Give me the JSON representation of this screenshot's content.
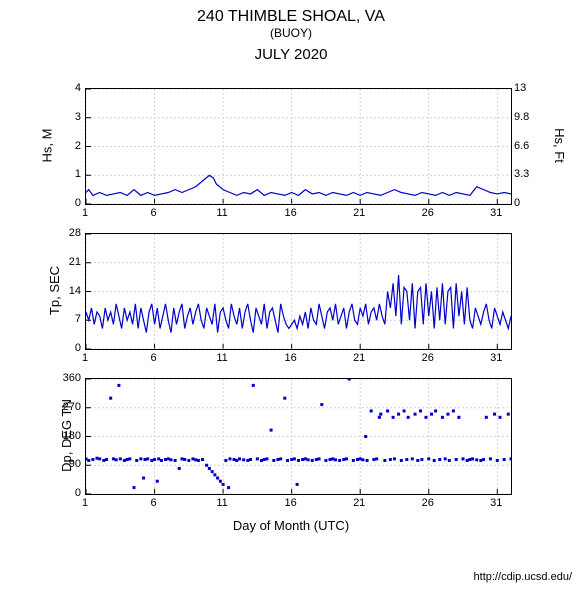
{
  "title": "240 THIMBLE SHOAL, VA",
  "subtitle": "(BUOY)",
  "month_title": "JULY 2020",
  "x_axis_label": "Day of Month (UTC)",
  "footer": "http://cdip.ucsd.edu/",
  "x_ticks": [
    1,
    6,
    11,
    16,
    21,
    26,
    31
  ],
  "x_range": [
    1,
    32
  ],
  "line_color": "#0000cc",
  "grid_color": "#d3d3d3",
  "background_color": "#ffffff",
  "text_color": "#000000",
  "chart1": {
    "y_label_left": "Hs, M",
    "y_label_right": "Hs, Ft",
    "y_ticks_left": [
      0,
      1,
      2,
      3,
      4
    ],
    "y_ticks_right": [
      0,
      3.3,
      6.6,
      9.8,
      13
    ],
    "y_range": [
      0,
      4
    ],
    "type": "line",
    "data": [
      [
        1,
        0.4
      ],
      [
        1.2,
        0.5
      ],
      [
        1.5,
        0.3
      ],
      [
        2,
        0.4
      ],
      [
        2.5,
        0.3
      ],
      [
        3,
        0.35
      ],
      [
        3.5,
        0.4
      ],
      [
        4,
        0.3
      ],
      [
        4.5,
        0.5
      ],
      [
        5,
        0.3
      ],
      [
        5.5,
        0.4
      ],
      [
        6,
        0.3
      ],
      [
        6.5,
        0.35
      ],
      [
        7,
        0.4
      ],
      [
        7.5,
        0.5
      ],
      [
        8,
        0.4
      ],
      [
        8.5,
        0.5
      ],
      [
        9,
        0.6
      ],
      [
        9.5,
        0.8
      ],
      [
        10,
        1.0
      ],
      [
        10.3,
        0.9
      ],
      [
        10.5,
        0.7
      ],
      [
        11,
        0.5
      ],
      [
        11.5,
        0.4
      ],
      [
        12,
        0.3
      ],
      [
        12.5,
        0.4
      ],
      [
        13,
        0.35
      ],
      [
        13.5,
        0.5
      ],
      [
        14,
        0.3
      ],
      [
        14.5,
        0.4
      ],
      [
        15,
        0.35
      ],
      [
        15.5,
        0.3
      ],
      [
        16,
        0.4
      ],
      [
        16.5,
        0.3
      ],
      [
        17,
        0.5
      ],
      [
        17.5,
        0.35
      ],
      [
        18,
        0.4
      ],
      [
        18.5,
        0.3
      ],
      [
        19,
        0.4
      ],
      [
        19.5,
        0.35
      ],
      [
        20,
        0.3
      ],
      [
        20.5,
        0.4
      ],
      [
        21,
        0.3
      ],
      [
        21.5,
        0.4
      ],
      [
        22,
        0.35
      ],
      [
        22.5,
        0.3
      ],
      [
        23,
        0.4
      ],
      [
        23.5,
        0.5
      ],
      [
        24,
        0.4
      ],
      [
        24.5,
        0.35
      ],
      [
        25,
        0.3
      ],
      [
        25.5,
        0.4
      ],
      [
        26,
        0.35
      ],
      [
        26.5,
        0.3
      ],
      [
        27,
        0.4
      ],
      [
        27.5,
        0.3
      ],
      [
        28,
        0.4
      ],
      [
        28.5,
        0.35
      ],
      [
        29,
        0.3
      ],
      [
        29.5,
        0.6
      ],
      [
        30,
        0.5
      ],
      [
        30.5,
        0.4
      ],
      [
        31,
        0.35
      ],
      [
        31.5,
        0.4
      ],
      [
        32,
        0.35
      ]
    ]
  },
  "chart2": {
    "y_label_left": "Tp, SEC",
    "y_ticks_left": [
      0,
      7,
      14,
      21,
      28
    ],
    "y_range": [
      0,
      28
    ],
    "type": "line",
    "data": [
      [
        1,
        9
      ],
      [
        1.2,
        7
      ],
      [
        1.4,
        10
      ],
      [
        1.6,
        6
      ],
      [
        1.8,
        9
      ],
      [
        2,
        8
      ],
      [
        2.2,
        5
      ],
      [
        2.4,
        10
      ],
      [
        2.6,
        7
      ],
      [
        2.8,
        9
      ],
      [
        3,
        6
      ],
      [
        3.2,
        11
      ],
      [
        3.4,
        8
      ],
      [
        3.6,
        5
      ],
      [
        3.8,
        10
      ],
      [
        4,
        7
      ],
      [
        4.2,
        9
      ],
      [
        4.4,
        6
      ],
      [
        4.6,
        11
      ],
      [
        4.8,
        5
      ],
      [
        5,
        10
      ],
      [
        5.2,
        7
      ],
      [
        5.4,
        4
      ],
      [
        5.6,
        9
      ],
      [
        5.8,
        11
      ],
      [
        6,
        6
      ],
      [
        6.2,
        10
      ],
      [
        6.4,
        5
      ],
      [
        6.6,
        8
      ],
      [
        6.8,
        11
      ],
      [
        7,
        7
      ],
      [
        7.2,
        4
      ],
      [
        7.4,
        10
      ],
      [
        7.6,
        6
      ],
      [
        7.8,
        9
      ],
      [
        8,
        11
      ],
      [
        8.2,
        5
      ],
      [
        8.4,
        8
      ],
      [
        8.6,
        10
      ],
      [
        8.8,
        6
      ],
      [
        9,
        9
      ],
      [
        9.2,
        11
      ],
      [
        9.4,
        7
      ],
      [
        9.6,
        5
      ],
      [
        9.8,
        10
      ],
      [
        10,
        8
      ],
      [
        10.2,
        6
      ],
      [
        10.4,
        11
      ],
      [
        10.6,
        4
      ],
      [
        10.8,
        9
      ],
      [
        11,
        10
      ],
      [
        11.2,
        7
      ],
      [
        11.4,
        5
      ],
      [
        11.6,
        11
      ],
      [
        11.8,
        8
      ],
      [
        12,
        6
      ],
      [
        12.2,
        10
      ],
      [
        12.4,
        5
      ],
      [
        12.6,
        9
      ],
      [
        12.8,
        11
      ],
      [
        13,
        7
      ],
      [
        13.2,
        4
      ],
      [
        13.4,
        10
      ],
      [
        13.6,
        8
      ],
      [
        13.8,
        6
      ],
      [
        14,
        11
      ],
      [
        14.2,
        5
      ],
      [
        14.4,
        9
      ],
      [
        14.6,
        10
      ],
      [
        14.8,
        7
      ],
      [
        15,
        4
      ],
      [
        15.2,
        11
      ],
      [
        15.4,
        8
      ],
      [
        15.6,
        6
      ],
      [
        15.8,
        5
      ],
      [
        16,
        6
      ],
      [
        16.2,
        7
      ],
      [
        16.4,
        5
      ],
      [
        16.6,
        8
      ],
      [
        16.8,
        6
      ],
      [
        17,
        9
      ],
      [
        17.2,
        5
      ],
      [
        17.4,
        10
      ],
      [
        17.6,
        7
      ],
      [
        17.8,
        6
      ],
      [
        18,
        11
      ],
      [
        18.2,
        8
      ],
      [
        18.4,
        5
      ],
      [
        18.6,
        9
      ],
      [
        18.8,
        10
      ],
      [
        19,
        7
      ],
      [
        19.2,
        11
      ],
      [
        19.4,
        6
      ],
      [
        19.6,
        8
      ],
      [
        19.8,
        10
      ],
      [
        20,
        5
      ],
      [
        20.2,
        9
      ],
      [
        20.4,
        11
      ],
      [
        20.6,
        7
      ],
      [
        20.8,
        6
      ],
      [
        21,
        10
      ],
      [
        21.2,
        8
      ],
      [
        21.4,
        11
      ],
      [
        21.6,
        6
      ],
      [
        21.8,
        9
      ],
      [
        22,
        10
      ],
      [
        22.2,
        7
      ],
      [
        22.4,
        11
      ],
      [
        22.6,
        8
      ],
      [
        22.8,
        6
      ],
      [
        23,
        14
      ],
      [
        23.2,
        10
      ],
      [
        23.4,
        16
      ],
      [
        23.6,
        8
      ],
      [
        23.8,
        18
      ],
      [
        24,
        6
      ],
      [
        24.2,
        15
      ],
      [
        24.4,
        14
      ],
      [
        24.6,
        7
      ],
      [
        24.8,
        16
      ],
      [
        25,
        5
      ],
      [
        25.2,
        14
      ],
      [
        25.4,
        15
      ],
      [
        25.6,
        6
      ],
      [
        25.8,
        16
      ],
      [
        26,
        8
      ],
      [
        26.2,
        14
      ],
      [
        26.4,
        5
      ],
      [
        26.6,
        15
      ],
      [
        26.8,
        7
      ],
      [
        27,
        16
      ],
      [
        27.2,
        6
      ],
      [
        27.4,
        14
      ],
      [
        27.6,
        15
      ],
      [
        27.8,
        5
      ],
      [
        28,
        16
      ],
      [
        28.2,
        8
      ],
      [
        28.4,
        14
      ],
      [
        28.6,
        6
      ],
      [
        28.8,
        15
      ],
      [
        29,
        7
      ],
      [
        29.2,
        5
      ],
      [
        29.4,
        10
      ],
      [
        29.6,
        8
      ],
      [
        29.8,
        6
      ],
      [
        30,
        9
      ],
      [
        30.2,
        11
      ],
      [
        30.4,
        7
      ],
      [
        30.6,
        5
      ],
      [
        30.8,
        10
      ],
      [
        31,
        8
      ],
      [
        31.2,
        6
      ],
      [
        31.4,
        9
      ],
      [
        31.6,
        7
      ],
      [
        31.8,
        5
      ],
      [
        32,
        8
      ]
    ]
  },
  "chart3": {
    "y_label_left": "Dp, DEG TN",
    "y_ticks_left": [
      0,
      90,
      180,
      270,
      360
    ],
    "y_range": [
      0,
      360
    ],
    "type": "scatter",
    "data": [
      [
        1,
        110
      ],
      [
        1.2,
        105
      ],
      [
        1.5,
        108
      ],
      [
        1.8,
        112
      ],
      [
        2,
        110
      ],
      [
        2.3,
        105
      ],
      [
        2.5,
        108
      ],
      [
        2.8,
        300
      ],
      [
        3,
        110
      ],
      [
        3.2,
        107
      ],
      [
        3.4,
        340
      ],
      [
        3.5,
        110
      ],
      [
        3.8,
        105
      ],
      [
        4,
        108
      ],
      [
        4.2,
        110
      ],
      [
        4.5,
        20
      ],
      [
        4.7,
        105
      ],
      [
        5,
        110
      ],
      [
        5.2,
        50
      ],
      [
        5.3,
        108
      ],
      [
        5.5,
        110
      ],
      [
        5.8,
        105
      ],
      [
        6,
        108
      ],
      [
        6.2,
        40
      ],
      [
        6.3,
        110
      ],
      [
        6.5,
        105
      ],
      [
        6.8,
        108
      ],
      [
        7,
        110
      ],
      [
        7.2,
        107
      ],
      [
        7.5,
        105
      ],
      [
        7.8,
        80
      ],
      [
        8,
        110
      ],
      [
        8.2,
        108
      ],
      [
        8.5,
        105
      ],
      [
        8.8,
        110
      ],
      [
        9,
        107
      ],
      [
        9.2,
        105
      ],
      [
        9.5,
        108
      ],
      [
        9.8,
        90
      ],
      [
        10,
        80
      ],
      [
        10.2,
        70
      ],
      [
        10.4,
        60
      ],
      [
        10.6,
        50
      ],
      [
        10.8,
        40
      ],
      [
        11,
        30
      ],
      [
        11.2,
        105
      ],
      [
        11.4,
        20
      ],
      [
        11.5,
        110
      ],
      [
        11.8,
        108
      ],
      [
        12,
        105
      ],
      [
        12.2,
        110
      ],
      [
        12.5,
        107
      ],
      [
        12.8,
        105
      ],
      [
        13,
        108
      ],
      [
        13.2,
        340
      ],
      [
        13.5,
        110
      ],
      [
        13.8,
        105
      ],
      [
        14,
        108
      ],
      [
        14.2,
        110
      ],
      [
        14.5,
        200
      ],
      [
        14.7,
        105
      ],
      [
        15,
        108
      ],
      [
        15.2,
        110
      ],
      [
        15.5,
        300
      ],
      [
        15.7,
        105
      ],
      [
        16,
        108
      ],
      [
        16.2,
        110
      ],
      [
        16.4,
        30
      ],
      [
        16.5,
        105
      ],
      [
        16.8,
        108
      ],
      [
        17,
        110
      ],
      [
        17.2,
        107
      ],
      [
        17.5,
        105
      ],
      [
        17.8,
        108
      ],
      [
        18,
        110
      ],
      [
        18.2,
        280
      ],
      [
        18.5,
        105
      ],
      [
        18.8,
        108
      ],
      [
        19,
        110
      ],
      [
        19.2,
        107
      ],
      [
        19.5,
        105
      ],
      [
        19.8,
        108
      ],
      [
        20,
        110
      ],
      [
        20.2,
        360
      ],
      [
        20.5,
        105
      ],
      [
        20.8,
        108
      ],
      [
        21,
        110
      ],
      [
        21.2,
        107
      ],
      [
        21.4,
        180
      ],
      [
        21.5,
        105
      ],
      [
        21.8,
        260
      ],
      [
        22,
        108
      ],
      [
        22.2,
        110
      ],
      [
        22.4,
        240
      ],
      [
        22.5,
        250
      ],
      [
        22.8,
        105
      ],
      [
        23,
        260
      ],
      [
        23.2,
        108
      ],
      [
        23.4,
        240
      ],
      [
        23.5,
        110
      ],
      [
        23.8,
        250
      ],
      [
        24,
        105
      ],
      [
        24.2,
        260
      ],
      [
        24.4,
        108
      ],
      [
        24.5,
        240
      ],
      [
        24.8,
        110
      ],
      [
        25,
        250
      ],
      [
        25.2,
        105
      ],
      [
        25.4,
        260
      ],
      [
        25.5,
        108
      ],
      [
        25.8,
        240
      ],
      [
        26,
        110
      ],
      [
        26.2,
        250
      ],
      [
        26.4,
        105
      ],
      [
        26.5,
        260
      ],
      [
        26.8,
        108
      ],
      [
        27,
        240
      ],
      [
        27.2,
        110
      ],
      [
        27.4,
        250
      ],
      [
        27.5,
        105
      ],
      [
        27.8,
        260
      ],
      [
        28,
        108
      ],
      [
        28.2,
        240
      ],
      [
        28.5,
        110
      ],
      [
        28.8,
        105
      ],
      [
        29,
        108
      ],
      [
        29.2,
        110
      ],
      [
        29.5,
        107
      ],
      [
        29.8,
        105
      ],
      [
        30,
        108
      ],
      [
        30.2,
        240
      ],
      [
        30.5,
        110
      ],
      [
        30.8,
        250
      ],
      [
        31,
        105
      ],
      [
        31.2,
        240
      ],
      [
        31.5,
        108
      ],
      [
        31.8,
        250
      ],
      [
        32,
        110
      ]
    ]
  }
}
